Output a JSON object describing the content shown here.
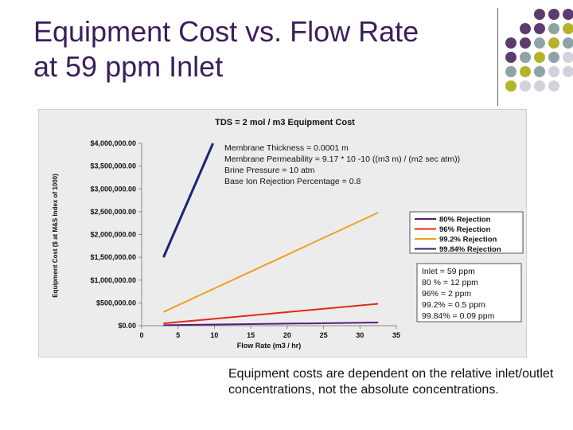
{
  "slide": {
    "title_line1": "Equipment Cost vs. Flow Rate",
    "title_line2": "at 59 ppm Inlet",
    "caption": "Equipment costs are dependent on the relative inlet/outlet concentrations, not the absolute concentrations.",
    "colors": {
      "title": "#3b1e5c",
      "dot_purple": "#5c3c6e",
      "dot_teal": "#8fa3a6",
      "dot_olive": "#b4b42a",
      "dot_gray": "#d2d2dc"
    }
  },
  "chart_data": {
    "type": "line",
    "title": "TDS = 2 mol / m3 Equipment Cost",
    "xlabel": "Flow Rate (m3 / hr)",
    "ylabel": "Equipment Cost ($ at M&S Index of 1000)",
    "xlim": [
      0,
      35
    ],
    "ylim": [
      0,
      4000000
    ],
    "x_ticks": [
      "0",
      "5",
      "10",
      "15",
      "20",
      "25",
      "30",
      "35"
    ],
    "y_ticks": [
      "$0.00",
      "$500,000.00",
      "$1,000,000.00",
      "$1,500,000.00",
      "$2,000,000.00",
      "$2,500,000.00",
      "$3,000,000.00",
      "$3,500,000.00",
      "$4,000,000.00"
    ],
    "grid": false,
    "legend_position": "right",
    "series": [
      {
        "name": "80% Rejection",
        "color": "#5b1a78",
        "x": [
          3,
          32.5
        ],
        "y": [
          10000,
          70000
        ]
      },
      {
        "name": "96% Rejection",
        "color": "#e02a1a",
        "x": [
          3,
          32.5
        ],
        "y": [
          50000,
          480000
        ]
      },
      {
        "name": "99.2% Rejection",
        "color": "#f0a020",
        "x": [
          3,
          32.5
        ],
        "y": [
          300000,
          2480000
        ]
      },
      {
        "name": "99.84% Rejection",
        "color": "#1a237a",
        "x": [
          3,
          9.8
        ],
        "y": [
          1500000,
          4000000
        ]
      }
    ],
    "annotation_lines": [
      "Membrane Thickness = 0.0001 m",
      "Membrane Permeability = 9.17 * 10 -10 ((m3 m) / (m2 sec atm))",
      "Brine Pressure = 10 atm",
      "Base Ion Rejection Percentage = 0.8"
    ],
    "inlet_box_lines": [
      "Inlet = 59 ppm",
      "80 % = 12 ppm",
      "96% = 2 ppm",
      "99.2% = 0.5 ppm",
      "99.84% = 0.09 ppm"
    ]
  }
}
